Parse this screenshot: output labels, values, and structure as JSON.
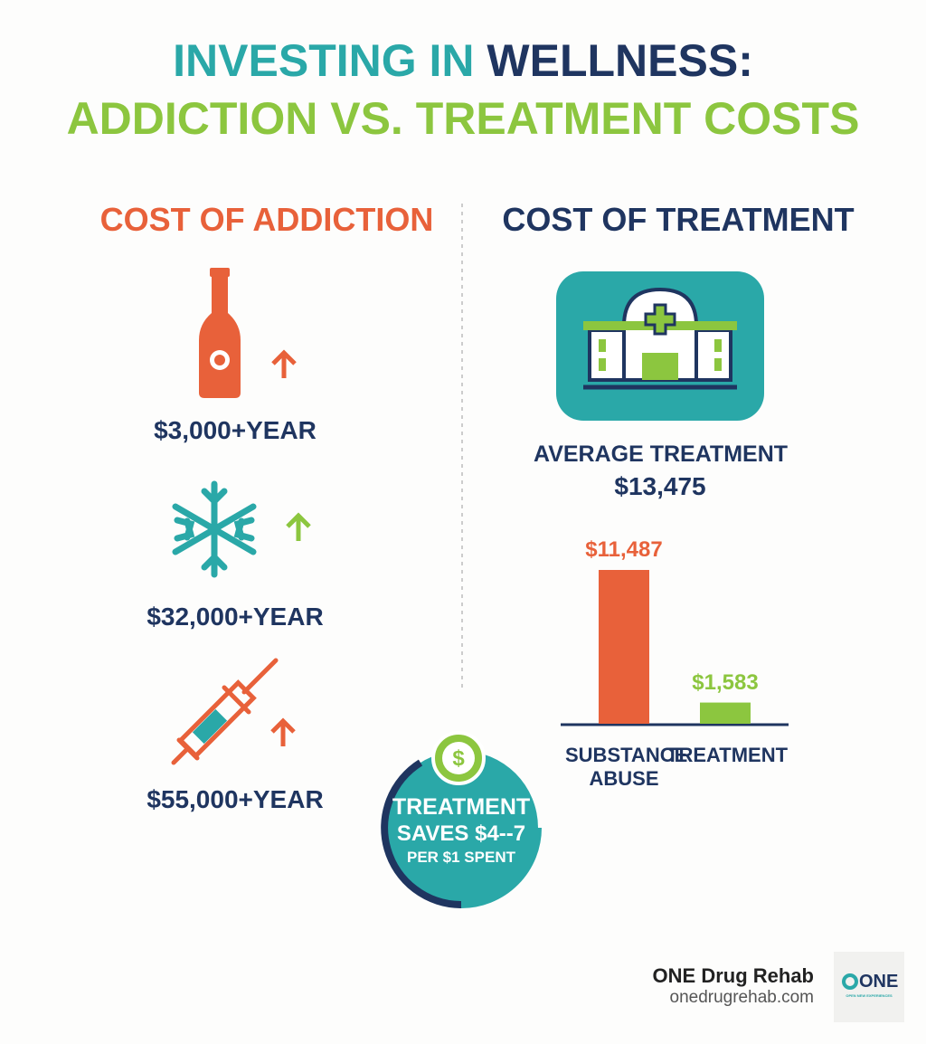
{
  "title_part1": "INVESTING IN",
  "title_part2": "WELLNESS:",
  "title_line2": "ADDICTION VS. TREATMENT COSTS",
  "addiction": {
    "heading": "COST OF ADDICTION",
    "items": [
      "$3,000+YEAR",
      "$32,000+YEAR",
      "$55,000+YEAR"
    ]
  },
  "treatment": {
    "heading": "COST OF TREATMENT",
    "average_label": "AVERAGE TREATMENT",
    "average_value": "$13,475"
  },
  "chart_data": {
    "type": "bar",
    "categories": [
      "SUBSTANCE ABUSE",
      "TREATMENT"
    ],
    "values": [
      11487,
      1583
    ],
    "value_labels": [
      "$11,487",
      "$1,583"
    ],
    "colors": [
      "#e8613a",
      "#8cc63f"
    ]
  },
  "savings": {
    "line1": "TREATMENT",
    "line2": "SAVES $4--7",
    "line3": "PER $1 SPENT"
  },
  "footer": {
    "brand": "ONE Drug Rehab",
    "url": "onedrugrehab.com",
    "logo": "ONE",
    "logo_tagline": "OPEN NEW EXPERIENCES"
  }
}
